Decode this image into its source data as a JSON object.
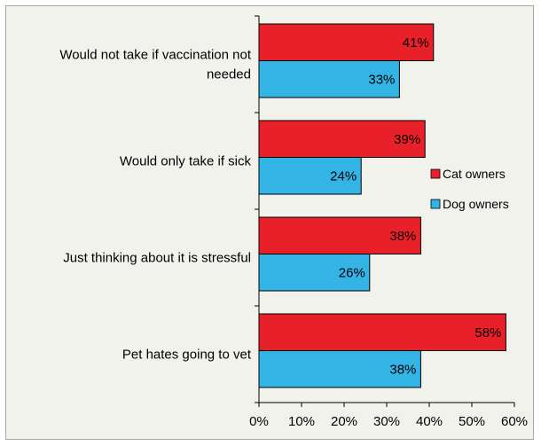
{
  "chart_data": {
    "type": "bar",
    "orientation": "horizontal",
    "categories": [
      [
        "Would not take if vaccination not",
        "needed"
      ],
      [
        "Would only take if sick"
      ],
      [
        "Just thinking about it is stressful"
      ],
      [
        "Pet hates going to vet"
      ]
    ],
    "series": [
      {
        "name": "Cat owners",
        "color": "#e8202a",
        "values": [
          41,
          39,
          38,
          58
        ],
        "labels": [
          "41%",
          "39%",
          "38%",
          "58%"
        ]
      },
      {
        "name": "Dog owners",
        "color": "#33b4e5",
        "values": [
          33,
          24,
          26,
          38
        ],
        "labels": [
          "33%",
          "24%",
          "26%",
          "38%"
        ]
      }
    ],
    "xlim": [
      0,
      60
    ],
    "x_ticks": [
      "0%",
      "10%",
      "20%",
      "30%",
      "40%",
      "50%",
      "60%"
    ],
    "grid": false,
    "legend_position": "right"
  }
}
